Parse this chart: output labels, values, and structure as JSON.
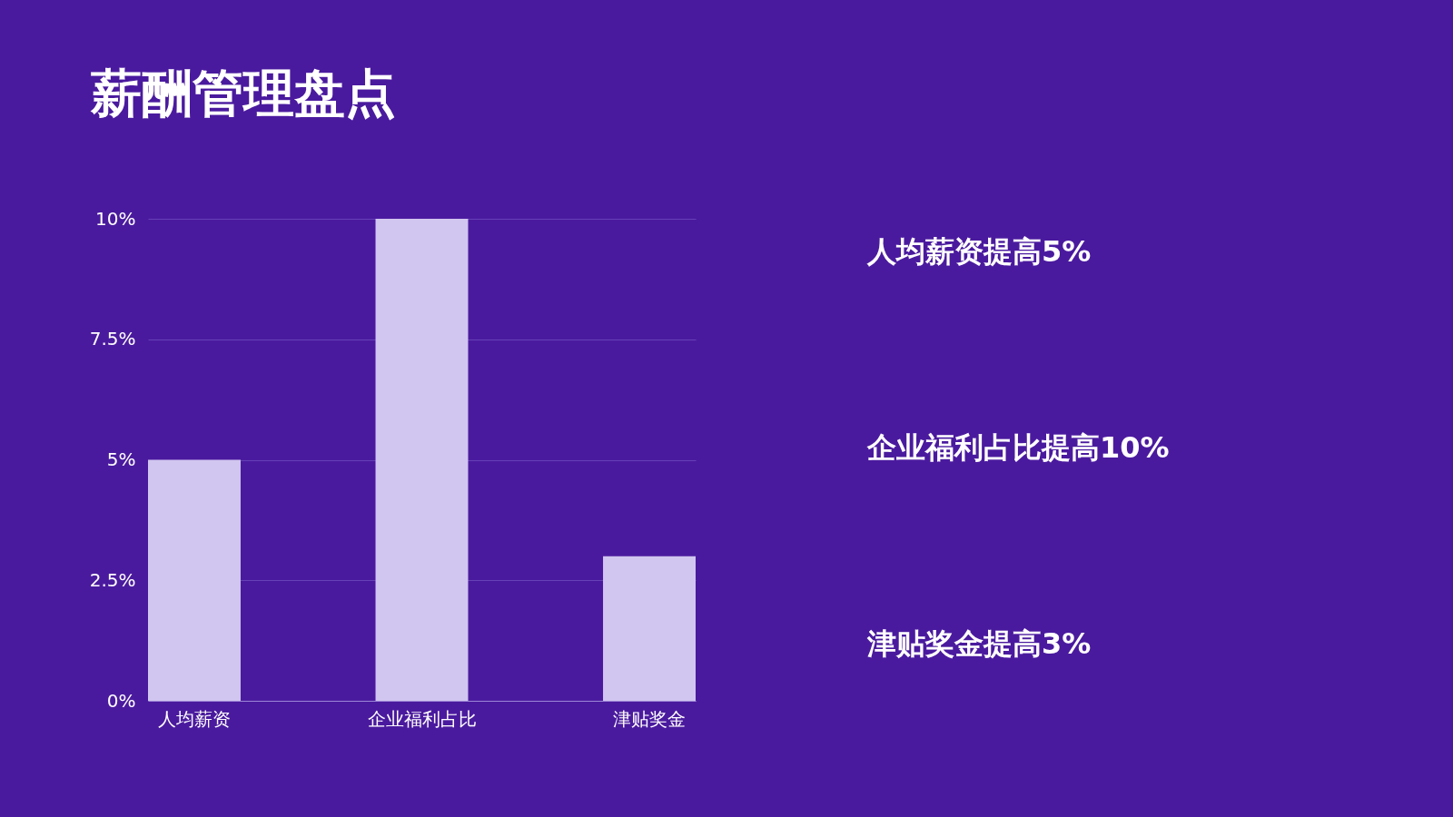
{
  "chart_data": {
    "type": "bar",
    "title": "薪酬管理盘点",
    "categories": [
      "人均薪资",
      "企业福利占比",
      "津贴奖金"
    ],
    "values": [
      5,
      10,
      3
    ],
    "color": "#d1c6ef",
    "ylim": [
      0,
      10
    ],
    "yticks": [
      {
        "value": 0,
        "label": "0%"
      },
      {
        "value": 2.5,
        "label": "2.5%"
      },
      {
        "value": 5,
        "label": "5%"
      },
      {
        "value": 7.5,
        "label": "7.5%"
      },
      {
        "value": 10,
        "label": "10%"
      }
    ],
    "grid": "y",
    "annotations": [
      "人均薪资提高5%",
      "企业福利占比提高10%",
      "津贴奖金提高3%"
    ]
  }
}
